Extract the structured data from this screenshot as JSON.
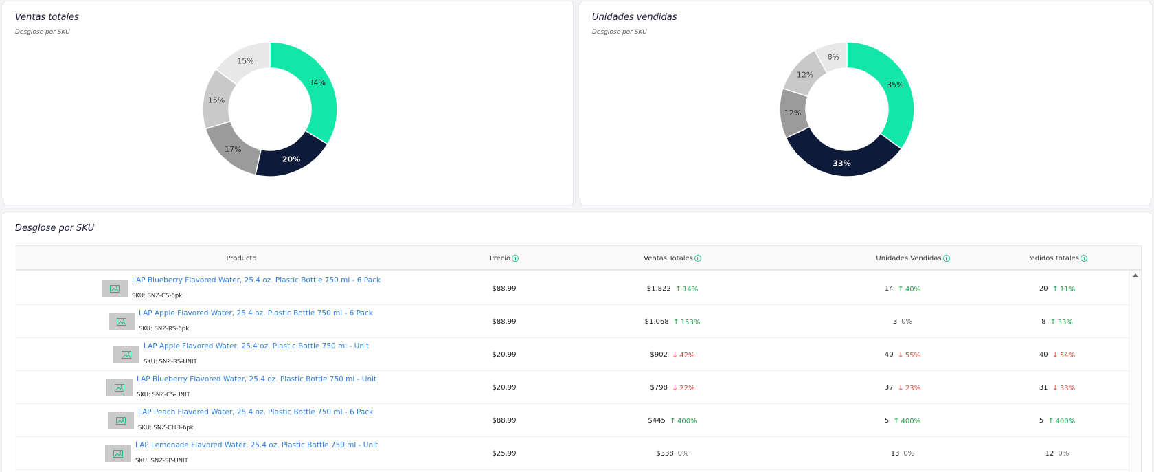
{
  "colors": {
    "seg1": "#12e6a8",
    "seg2": "#0d1a3a",
    "seg3": "#9b9b9b",
    "seg4": "#c9c9c9",
    "seg5": "#e8e8e8",
    "accent": "#12c48b",
    "link": "#2f7fe0",
    "up": "#1aa64a",
    "down": "#e0483f"
  },
  "ventas_card": {
    "title": "Ventas totales",
    "subtitle": "Desglose por SKU"
  },
  "unidades_card": {
    "title": "Unidades vendidas",
    "subtitle": "Desglose por SKU"
  },
  "chart_data": [
    {
      "type": "pie",
      "donut": true,
      "title": "Ventas totales",
      "subtitle": "Desglose por SKU",
      "values": [
        34,
        20,
        17,
        15,
        15
      ],
      "labels": [
        "34%",
        "20%",
        "17%",
        "15%",
        "15%"
      ]
    },
    {
      "type": "pie",
      "donut": true,
      "title": "Unidades vendidas",
      "subtitle": "Desglose por SKU",
      "values": [
        35,
        33,
        12,
        12,
        8
      ],
      "labels": [
        "35%",
        "33%",
        "12%",
        "12%",
        "8%"
      ]
    }
  ],
  "table": {
    "title": "Desglose por SKU",
    "headers": {
      "producto": "Producto",
      "precio": "Precio",
      "ventas": "Ventas Totales",
      "unidades": "Unidades Vendidas",
      "pedidos": "Pedidos totales"
    },
    "rows": [
      {
        "name": "LAP Blueberry Flavored Water, 25.4 oz. Plastic Bottle 750 ml - 6 Pack",
        "sku": "SKU: SNZ-CS-6pk",
        "precio": "$88.99",
        "ventas": "$1,822",
        "ventas_chg": "14%",
        "ventas_dir": "up",
        "unidades": "14",
        "unidades_chg": "40%",
        "unidades_dir": "up",
        "pedidos": "20",
        "pedidos_chg": "11%",
        "pedidos_dir": "up"
      },
      {
        "name": "LAP Apple Flavored Water, 25.4 oz. Plastic Bottle 750 ml - 6 Pack",
        "sku": "SKU: SNZ-RS-6pk",
        "precio": "$88.99",
        "ventas": "$1,068",
        "ventas_chg": "153%",
        "ventas_dir": "up",
        "unidades": "3",
        "unidades_chg": "0%",
        "unidades_dir": "flat",
        "pedidos": "8",
        "pedidos_chg": "33%",
        "pedidos_dir": "up"
      },
      {
        "name": "LAP Apple Flavored Water, 25.4 oz. Plastic Bottle 750 ml - Unit",
        "sku": "SKU: SNZ-RS-UNIT",
        "precio": "$20.99",
        "ventas": "$902",
        "ventas_chg": "42%",
        "ventas_dir": "down",
        "unidades": "40",
        "unidades_chg": "55%",
        "unidades_dir": "down",
        "pedidos": "40",
        "pedidos_chg": "54%",
        "pedidos_dir": "down"
      },
      {
        "name": "LAP Blueberry Flavored Water, 25.4 oz. Plastic Bottle 750 ml - Unit",
        "sku": "SKU: SNZ-CS-UNIT",
        "precio": "$20.99",
        "ventas": "$798",
        "ventas_chg": "22%",
        "ventas_dir": "down",
        "unidades": "37",
        "unidades_chg": "23%",
        "unidades_dir": "down",
        "pedidos": "31",
        "pedidos_chg": "33%",
        "pedidos_dir": "down"
      },
      {
        "name": "LAP Peach Flavored Water, 25.4 oz. Plastic Bottle 750 ml - 6 Pack",
        "sku": "SKU: SNZ-CHD-6pk",
        "precio": "$88.99",
        "ventas": "$445",
        "ventas_chg": "400%",
        "ventas_dir": "up",
        "unidades": "5",
        "unidades_chg": "400%",
        "unidades_dir": "up",
        "pedidos": "5",
        "pedidos_chg": "400%",
        "pedidos_dir": "up"
      },
      {
        "name": "LAP Lemonade Flavored Water, 25.4 oz. Plastic Bottle 750 ml - Unit",
        "sku": "SKU: SNZ-SP-UNIT",
        "precio": "$25.99",
        "ventas": "$338",
        "ventas_chg": "0%",
        "ventas_dir": "flat",
        "unidades": "13",
        "unidades_chg": "0%",
        "unidades_dir": "flat",
        "pedidos": "12",
        "pedidos_chg": "0%",
        "pedidos_dir": "flat"
      }
    ]
  }
}
